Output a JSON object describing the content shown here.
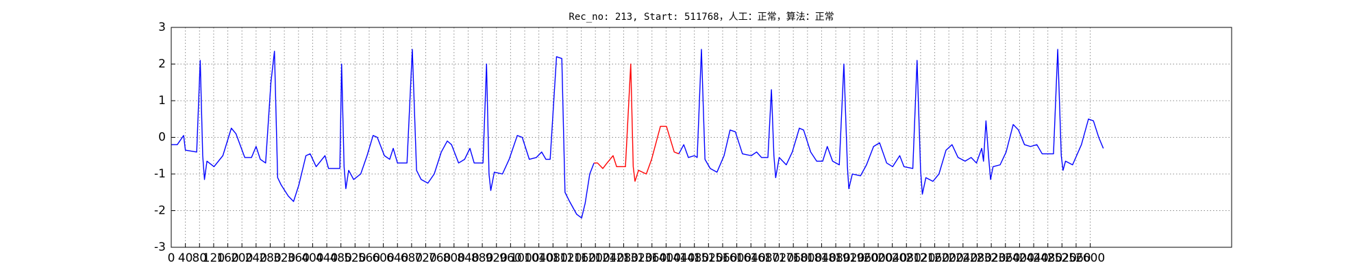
{
  "chart_data": {
    "type": "line",
    "title": "Rec_no: 213, Start: 511768，人工：正常，算法：正常",
    "xlim": [
      0,
      3000
    ],
    "ylim": [
      -3,
      3
    ],
    "yticks": [
      -3,
      -2,
      -1,
      0,
      1,
      2,
      3
    ],
    "xticks": [
      0,
      40,
      80,
      120,
      160,
      200,
      240,
      280,
      320,
      360,
      400,
      440,
      480,
      520,
      560,
      600,
      640,
      680,
      720,
      760,
      800,
      840,
      880,
      920,
      960,
      1000,
      1040,
      1080,
      1120,
      1160,
      1200,
      1240,
      1280,
      1320,
      1360,
      1400,
      1440,
      1480,
      1520,
      1560,
      1600,
      1640,
      1680,
      1720,
      1760,
      1800,
      1840,
      1880,
      1920,
      1960,
      2000,
      2040,
      2080,
      2120,
      2160,
      2200,
      2240,
      2280,
      2320,
      2360,
      2400,
      2440,
      2480,
      2520,
      2560,
      2600
    ],
    "grid": true,
    "series": [
      {
        "color": "#0000ff",
        "x": [
          0,
          17,
          35,
          40,
          72,
          82,
          89,
          94,
          101,
          121,
          146,
          170,
          183,
          208,
          227,
          240,
          252,
          267,
          282,
          292,
          301,
          311,
          331,
          346,
          361,
          381,
          393,
          410,
          435,
          445,
          467,
          477,
          482,
          489,
          494,
          502,
          516,
          536,
          554,
          571,
          583,
          603,
          618,
          628,
          640,
          667,
          682,
          694,
          707,
          726,
          744,
          764,
          781,
          793,
          813,
          830,
          845,
          857,
          882,
          892,
          899,
          904,
          914,
          937,
          956,
          979,
          993,
          1013,
          1033,
          1048,
          1060,
          1072,
          1090,
          1105,
          1114,
          1127,
          1147,
          1161,
          1171,
          1184,
          1196,
          null,
          1436,
          1450,
          1463,
          1480,
          1488,
          1500,
          1510,
          1525,
          1544,
          1564,
          1581,
          1596,
          1616,
          1641,
          1656,
          1670,
          1688,
          1698,
          1705,
          1710,
          1720,
          1740,
          1757,
          1777,
          1789,
          1809,
          1826,
          1843,
          1856,
          1871,
          1890,
          1903,
          1913,
          1917,
          1927,
          1950,
          1967,
          1987,
          2004,
          2024,
          2041,
          2061,
          2073,
          2098,
          2110,
          2120,
          2125,
          2135,
          2155,
          2172,
          2192,
          2209,
          2226,
          2246,
          2263,
          2278,
          2293,
          2298,
          2305,
          2313,
          2318,
          2325,
          2345,
          2362,
          2382,
          2397,
          2414,
          2431,
          2449,
          2464,
          2496,
          2508,
          2518,
          2523,
          2530,
          2550,
          2575,
          2595,
          2609,
          2624,
          2637
        ],
        "values": [
          -0.2,
          -0.2,
          0.05,
          -0.35,
          -0.4,
          2.1,
          -0.5,
          -1.15,
          -0.65,
          -0.8,
          -0.5,
          0.25,
          0.1,
          -0.55,
          -0.55,
          -0.25,
          -0.6,
          -0.7,
          1.5,
          2.35,
          -1.1,
          -1.3,
          -1.6,
          -1.75,
          -1.3,
          -0.5,
          -0.45,
          -0.8,
          -0.5,
          -0.85,
          -0.85,
          -0.85,
          2.0,
          -0.8,
          -1.4,
          -0.9,
          -1.15,
          -1.0,
          -0.5,
          0.05,
          0.0,
          -0.5,
          -0.6,
          -0.3,
          -0.7,
          -0.7,
          2.4,
          -0.9,
          -1.15,
          -1.25,
          -1.0,
          -0.4,
          -0.1,
          -0.2,
          -0.7,
          -0.6,
          -0.3,
          -0.7,
          -0.7,
          2.0,
          -1.0,
          -1.45,
          -0.95,
          -1.0,
          -0.6,
          0.05,
          0.0,
          -0.6,
          -0.55,
          -0.4,
          -0.6,
          -0.6,
          2.2,
          2.15,
          -1.5,
          -1.75,
          -2.1,
          -2.2,
          -1.8,
          -1.0,
          -0.7,
          null,
          -0.45,
          -0.2,
          -0.55,
          -0.5,
          -0.55,
          2.4,
          -0.6,
          -0.85,
          -0.95,
          -0.5,
          0.2,
          0.15,
          -0.45,
          -0.5,
          -0.4,
          -0.55,
          -0.55,
          1.3,
          -0.5,
          -1.1,
          -0.55,
          -0.75,
          -0.4,
          0.25,
          0.2,
          -0.4,
          -0.65,
          -0.65,
          -0.25,
          -0.65,
          -0.75,
          2.0,
          -0.8,
          -1.4,
          -1.0,
          -1.05,
          -0.75,
          -0.25,
          -0.15,
          -0.7,
          -0.8,
          -0.5,
          -0.8,
          -0.85,
          2.1,
          -0.9,
          -1.55,
          -1.1,
          -1.2,
          -1.0,
          -0.35,
          -0.2,
          -0.55,
          -0.65,
          -0.55,
          -0.7,
          -0.3,
          -0.65,
          0.45,
          -0.6,
          -1.15,
          -0.8,
          -0.75,
          -0.4,
          0.35,
          0.2,
          -0.2,
          -0.25,
          -0.2,
          -0.45,
          -0.45,
          2.4,
          -0.5,
          -0.9,
          -0.65,
          -0.75,
          -0.2,
          0.5,
          0.45,
          0.0,
          -0.3
        ]
      },
      {
        "color": "#ff0000",
        "x": [
          1196,
          1206,
          1221,
          1233,
          1250,
          1260,
          1285,
          1300,
          1307,
          1312,
          1322,
          1344,
          1359,
          1384,
          1401,
          1423,
          1436
        ],
        "values": [
          -0.7,
          -0.7,
          -0.85,
          -0.7,
          -0.5,
          -0.8,
          -0.8,
          2.0,
          -0.8,
          -1.2,
          -0.9,
          -1.0,
          -0.6,
          0.3,
          0.3,
          -0.4,
          -0.45
        ]
      }
    ]
  }
}
